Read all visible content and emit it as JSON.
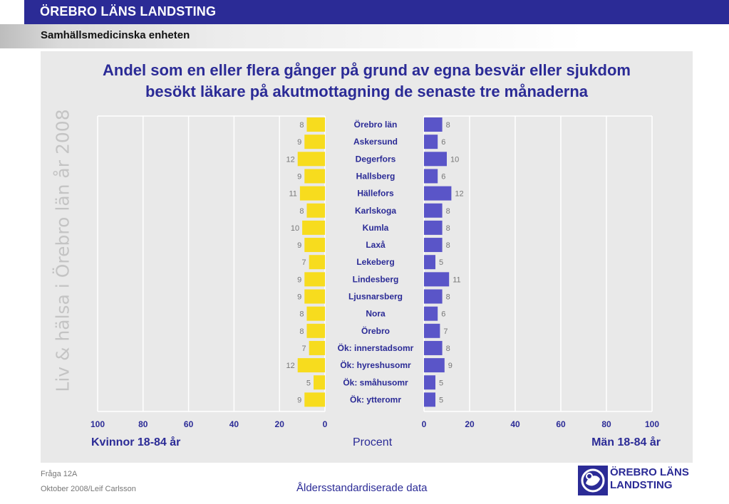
{
  "header": {
    "org_name": "ÖREBRO LÄNS LANDSTING",
    "unit_name": "Samhällsmedicinska enheten"
  },
  "side_text": "Liv & hälsa i Örebro län år 2008",
  "footer": {
    "question": "Fråga 12A",
    "date_author": "Oktober 2008/Leif Carlsson",
    "note": "Åldersstandardiserade data",
    "logo_line1": "ÖREBRO LÄNS",
    "logo_line2": "LANDSTING"
  },
  "colors": {
    "header_blue": "#2b2b96",
    "women_bar": "#f7dc1e",
    "men_bar": "#5a55c8",
    "panel": "#e9e9e9"
  },
  "chart_data": {
    "type": "bar",
    "orientation": "horizontal-butterfly",
    "title": "Andel som en eller flera gånger på grund av egna besvär eller sjukdom besökt läkare på akutmottagning de senaste tre månaderna",
    "title_lines": [
      "Andel som en eller flera gånger på grund av egna besvär eller sjukdom",
      "besökt läkare på akutmottagning de senaste tre månaderna"
    ],
    "xlabel": "Procent",
    "xlim": [
      0,
      100
    ],
    "ticks": [
      0,
      20,
      40,
      60,
      80,
      100
    ],
    "grid": true,
    "categories": [
      "Örebro län",
      "Askersund",
      "Degerfors",
      "Hallsberg",
      "Hällefors",
      "Karlskoga",
      "Kumla",
      "Laxå",
      "Lekeberg",
      "Lindesberg",
      "Ljusnarsberg",
      "Nora",
      "Örebro",
      "Ök: innerstadsomr",
      "Ök: hyreshusomr",
      "Ök: småhusomr",
      "Ök: ytteromr"
    ],
    "series": [
      {
        "name": "Kvinnor 18-84 år",
        "side": "left",
        "values": [
          8,
          9,
          12,
          9,
          11,
          8,
          10,
          9,
          7,
          9,
          9,
          8,
          8,
          7,
          12,
          5,
          9
        ]
      },
      {
        "name": "Män 18-84 år",
        "side": "right",
        "values": [
          8,
          6,
          10,
          6,
          12,
          8,
          8,
          8,
          5,
          11,
          8,
          6,
          7,
          8,
          9,
          5,
          5
        ]
      }
    ]
  }
}
